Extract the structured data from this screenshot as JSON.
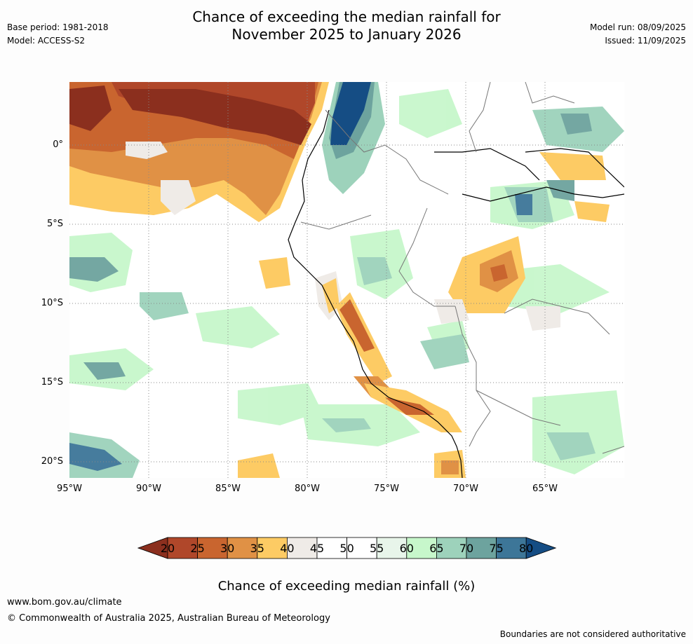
{
  "title_line1": "Chance of exceeding the median rainfall for",
  "title_line2": "November 2025 to January 2026",
  "meta_left": [
    "Base period: 1981-2018",
    "Model: ACCESS-S2"
  ],
  "meta_right": [
    "Model run: 08/09/2025",
    "Issued: 11/09/2025"
  ],
  "lat_labels": [
    "0°",
    "5°S",
    "10°S",
    "15°S",
    "20°S"
  ],
  "lon_labels": [
    "95°W",
    "90°W",
    "85°W",
    "80°W",
    "75°W",
    "70°W",
    "65°W"
  ],
  "colorbar": {
    "ticks": [
      "20",
      "25",
      "30",
      "35",
      "40",
      "45",
      "50",
      "55",
      "60",
      "65",
      "70",
      "75",
      "80"
    ],
    "colors": [
      "#8b2f1e",
      "#b0472a",
      "#c9652f",
      "#e09145",
      "#fdcb64",
      "#efebe7",
      "#ffffff",
      "#ffffff",
      "#e8f5ea",
      "#c7f7cb",
      "#9dd2bb",
      "#6da39e",
      "#3d7698",
      "#154d84"
    ],
    "title": "Chance of exceeding median rainfall (%)"
  },
  "footer": {
    "url": "www.bom.gov.au/climate",
    "copyright": "© Commonwealth of Australia 2025, Australian Bureau of Meteorology",
    "disclaimer": "Boundaries are not considered authoritative"
  }
}
